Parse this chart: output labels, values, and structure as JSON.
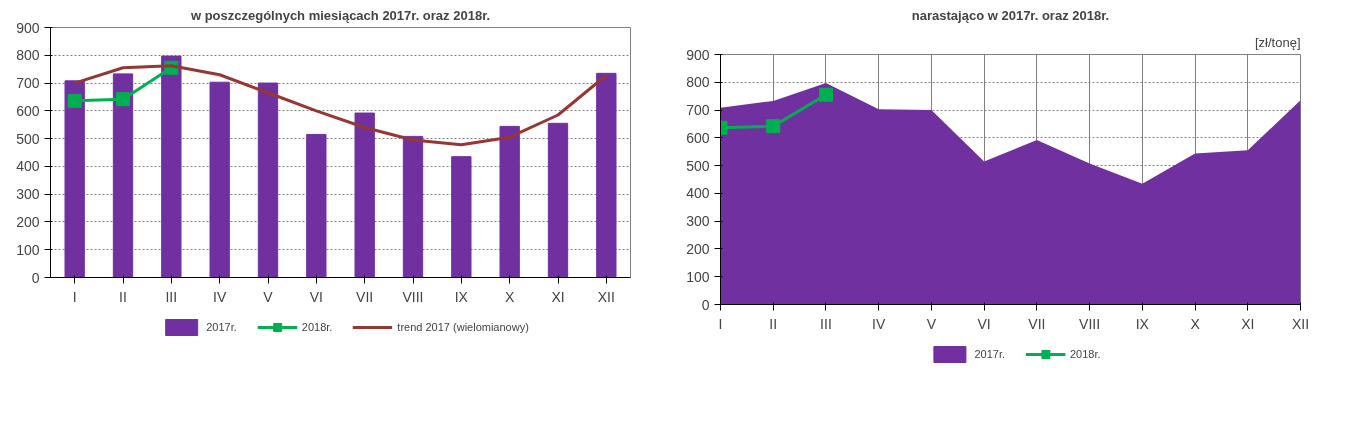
{
  "chart_data": [
    {
      "type": "bar",
      "title": "w poszczególnych miesiącach 2017r. oraz 2018r.",
      "categories": [
        "I",
        "II",
        "III",
        "IV",
        "V",
        "VI",
        "VII",
        "VIII",
        "IX",
        "X",
        "XI",
        "XII"
      ],
      "ylim": [
        0,
        900
      ],
      "yticks": [
        0,
        100,
        200,
        300,
        400,
        500,
        600,
        700,
        800,
        900
      ],
      "grid": "y",
      "legend": "bottom",
      "series": [
        {
          "name": "2017r.",
          "type": "bar",
          "color": "#7030a0",
          "values": [
            708,
            733,
            797,
            703,
            700,
            515,
            592,
            508,
            435,
            544,
            555,
            735
          ]
        },
        {
          "name": "2018r.",
          "type": "line",
          "color": "#00b050",
          "marker": "square",
          "values": [
            636,
            642,
            755,
            null,
            null,
            null,
            null,
            null,
            null,
            null,
            null,
            null
          ]
        },
        {
          "name": "trend 2017 (wielomianowy)",
          "type": "line",
          "color": "#953735",
          "marker": "none",
          "values": [
            700,
            755,
            762,
            730,
            665,
            600,
            540,
            495,
            478,
            505,
            585,
            728
          ]
        }
      ]
    },
    {
      "type": "area",
      "title": "narastająco w 2017r. oraz 2018r.",
      "annotations": [
        "[zł/tonę]"
      ],
      "categories": [
        "I",
        "II",
        "III",
        "IV",
        "V",
        "VI",
        "VII",
        "VIII",
        "IX",
        "X",
        "XI",
        "XII"
      ],
      "ylim": [
        0,
        900
      ],
      "yticks": [
        0,
        100,
        200,
        300,
        400,
        500,
        600,
        700,
        800,
        900
      ],
      "grid": true,
      "legend": "bottom",
      "series": [
        {
          "name": "2017r.",
          "type": "area",
          "color": "#7030a0",
          "values": [
            708,
            733,
            797,
            703,
            700,
            515,
            592,
            508,
            435,
            544,
            555,
            735
          ]
        },
        {
          "name": "2018r.",
          "type": "line",
          "color": "#00b050",
          "marker": "square",
          "values": [
            636,
            642,
            755,
            null,
            null,
            null,
            null,
            null,
            null,
            null,
            null,
            null
          ]
        }
      ]
    }
  ]
}
